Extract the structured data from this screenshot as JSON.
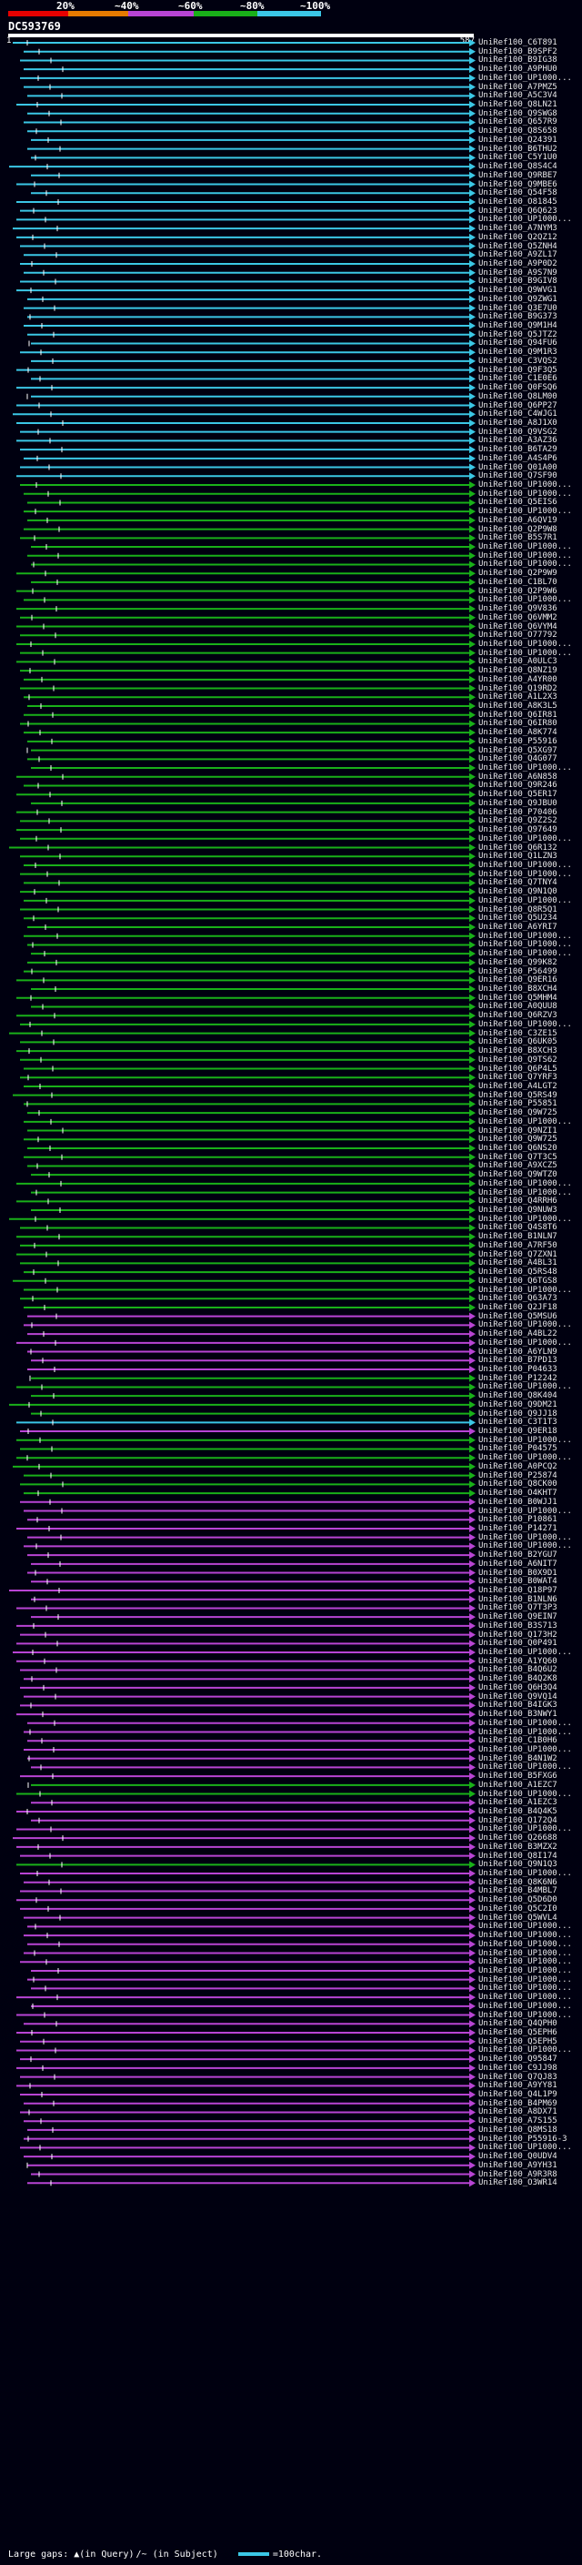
{
  "legend": {
    "labels": [
      "20%",
      "~40%",
      "~60%",
      "~80%",
      "~100%"
    ],
    "colors": [
      "#e60000",
      "#e67a00",
      "#b844d4",
      "#19b019",
      "#3bc7e6"
    ]
  },
  "query": {
    "name": "DC593769",
    "start": "1",
    "end": "587"
  },
  "hits": [
    {
      "label": "UniRef100_C6T891",
      "c": 4
    },
    {
      "label": "UniRef100_B9SPF2",
      "c": 4
    },
    {
      "label": "UniRef100_B9IG38",
      "c": 4
    },
    {
      "label": "UniRef100_A9PHU0",
      "c": 4
    },
    {
      "label": "UniRef100_UP1000...",
      "c": 4
    },
    {
      "label": "UniRef100_A7PMZ5",
      "c": 4
    },
    {
      "label": "UniRef100_A5C3V4",
      "c": 4
    },
    {
      "label": "UniRef100_Q8LN21",
      "c": 4
    },
    {
      "label": "UniRef100_Q9SWG8",
      "c": 4
    },
    {
      "label": "UniRef100_Q657R9",
      "c": 4
    },
    {
      "label": "UniRef100_Q8S658",
      "c": 4
    },
    {
      "label": "UniRef100_Q24391",
      "c": 4
    },
    {
      "label": "UniRef100_B6THU2",
      "c": 4
    },
    {
      "label": "UniRef100_C5Y1U0",
      "c": 4
    },
    {
      "label": "UniRef100_Q8S4C4",
      "c": 4
    },
    {
      "label": "UniRef100_Q9RBE7",
      "c": 4
    },
    {
      "label": "UniRef100_Q9MBE6",
      "c": 4
    },
    {
      "label": "UniRef100_Q54F58",
      "c": 4
    },
    {
      "label": "UniRef100_O81845",
      "c": 4
    },
    {
      "label": "UniRef100_Q6Q623",
      "c": 4
    },
    {
      "label": "UniRef100_UP1000...",
      "c": 4
    },
    {
      "label": "UniRef100_A7NYM3",
      "c": 4
    },
    {
      "label": "UniRef100_Q2QZ12",
      "c": 4
    },
    {
      "label": "UniRef100_Q5ZNH4",
      "c": 4
    },
    {
      "label": "UniRef100_A9ZL17",
      "c": 4
    },
    {
      "label": "UniRef100_A9P0D2",
      "c": 4
    },
    {
      "label": "UniRef100_A9S7N9",
      "c": 4
    },
    {
      "label": "UniRef100_B9GIV8",
      "c": 4
    },
    {
      "label": "UniRef100_Q9WVG1",
      "c": 4
    },
    {
      "label": "UniRef100_Q9ZWG1",
      "c": 4
    },
    {
      "label": "UniRef100_Q3E7U0",
      "c": 4
    },
    {
      "label": "UniRef100_B9G373",
      "c": 4
    },
    {
      "label": "UniRef100_Q9M1H4",
      "c": 4
    },
    {
      "label": "UniRef100_Q5JTZ2",
      "c": 4
    },
    {
      "label": "UniRef100_Q94FU6",
      "c": 4
    },
    {
      "label": "UniRef100_Q9M1R3",
      "c": 4
    },
    {
      "label": "UniRef100_C3VQS2",
      "c": 4
    },
    {
      "label": "UniRef100_Q9F3Q5",
      "c": 4
    },
    {
      "label": "UniRef100_C1E0E6",
      "c": 4
    },
    {
      "label": "UniRef100_Q0FSQ6",
      "c": 4
    },
    {
      "label": "UniRef100_Q8LM00",
      "c": 4
    },
    {
      "label": "UniRef100_Q6PP27",
      "c": 4
    },
    {
      "label": "UniRef100_C4WJG1",
      "c": 4
    },
    {
      "label": "UniRef100_A8J1X0",
      "c": 4
    },
    {
      "label": "UniRef100_Q9VSG2",
      "c": 4
    },
    {
      "label": "UniRef100_A3AZ36",
      "c": 4
    },
    {
      "label": "UniRef100_B6TA29",
      "c": 4
    },
    {
      "label": "UniRef100_A4S4P6",
      "c": 4
    },
    {
      "label": "UniRef100_Q01A00",
      "c": 4
    },
    {
      "label": "UniRef100_Q7SF90",
      "c": 4
    },
    {
      "label": "UniRef100_UP1000...",
      "c": 3
    },
    {
      "label": "UniRef100_UP1000...",
      "c": 3
    },
    {
      "label": "UniRef100_Q5EIS6",
      "c": 3
    },
    {
      "label": "UniRef100_UP1000...",
      "c": 3
    },
    {
      "label": "UniRef100_A6QV19",
      "c": 3
    },
    {
      "label": "UniRef100_Q2P9W8",
      "c": 3
    },
    {
      "label": "UniRef100_B5S7R1",
      "c": 3
    },
    {
      "label": "UniRef100_UP1000...",
      "c": 3
    },
    {
      "label": "UniRef100_UP1000...",
      "c": 3
    },
    {
      "label": "UniRef100_UP1000...",
      "c": 3
    },
    {
      "label": "UniRef100_Q2P9W9",
      "c": 3
    },
    {
      "label": "UniRef100_C1BL70",
      "c": 3
    },
    {
      "label": "UniRef100_Q2P9W6",
      "c": 3
    },
    {
      "label": "UniRef100_UP1000...",
      "c": 3
    },
    {
      "label": "UniRef100_Q9V836",
      "c": 3
    },
    {
      "label": "UniRef100_Q6VMM2",
      "c": 3
    },
    {
      "label": "UniRef100_Q6VYM4",
      "c": 3
    },
    {
      "label": "UniRef100_O77792",
      "c": 3
    },
    {
      "label": "UniRef100_UP1000...",
      "c": 3
    },
    {
      "label": "UniRef100_UP1000...",
      "c": 3
    },
    {
      "label": "UniRef100_A0ULC3",
      "c": 3
    },
    {
      "label": "UniRef100_Q8NZ19",
      "c": 3
    },
    {
      "label": "UniRef100_A4YR00",
      "c": 3
    },
    {
      "label": "UniRef100_Q19RD2",
      "c": 3
    },
    {
      "label": "UniRef100_A1L2X3",
      "c": 3
    },
    {
      "label": "UniRef100_A8K3L5",
      "c": 3
    },
    {
      "label": "UniRef100_Q6IR81",
      "c": 3
    },
    {
      "label": "UniRef100_Q6IR80",
      "c": 3
    },
    {
      "label": "UniRef100_A8K774",
      "c": 3
    },
    {
      "label": "UniRef100_P55916",
      "c": 3
    },
    {
      "label": "UniRef100_Q5XG97",
      "c": 3
    },
    {
      "label": "UniRef100_Q4G077",
      "c": 3
    },
    {
      "label": "UniRef100_UP1000...",
      "c": 3
    },
    {
      "label": "UniRef100_A6N858",
      "c": 3
    },
    {
      "label": "UniRef100_Q9R246",
      "c": 3
    },
    {
      "label": "UniRef100_Q5ER17",
      "c": 3
    },
    {
      "label": "UniRef100_Q9JBU0",
      "c": 3
    },
    {
      "label": "UniRef100_P70406",
      "c": 3
    },
    {
      "label": "UniRef100_Q9Z2S2",
      "c": 3
    },
    {
      "label": "UniRef100_Q97649",
      "c": 3
    },
    {
      "label": "UniRef100_UP1000...",
      "c": 3
    },
    {
      "label": "UniRef100_Q6R132",
      "c": 3
    },
    {
      "label": "UniRef100_Q1LZN3",
      "c": 3
    },
    {
      "label": "UniRef100_UP1000...",
      "c": 3
    },
    {
      "label": "UniRef100_UP1000...",
      "c": 3
    },
    {
      "label": "UniRef100_Q7TNY4",
      "c": 3
    },
    {
      "label": "UniRef100_Q9N1Q0",
      "c": 3
    },
    {
      "label": "UniRef100_UP1000...",
      "c": 3
    },
    {
      "label": "UniRef100_Q8R5Q1",
      "c": 3
    },
    {
      "label": "UniRef100_Q5U234",
      "c": 3
    },
    {
      "label": "UniRef100_A6YRI7",
      "c": 3
    },
    {
      "label": "UniRef100_UP1000...",
      "c": 3
    },
    {
      "label": "UniRef100_UP1000...",
      "c": 3
    },
    {
      "label": "UniRef100_UP1000...",
      "c": 3
    },
    {
      "label": "UniRef100_Q99K82",
      "c": 3
    },
    {
      "label": "UniRef100_P56499",
      "c": 3
    },
    {
      "label": "UniRef100_Q9ER16",
      "c": 3
    },
    {
      "label": "UniRef100_B8XCH4",
      "c": 3
    },
    {
      "label": "UniRef100_Q5MHM4",
      "c": 3
    },
    {
      "label": "UniRef100_A0QUU8",
      "c": 3
    },
    {
      "label": "UniRef100_Q6RZV3",
      "c": 3
    },
    {
      "label": "UniRef100_UP1000...",
      "c": 3
    },
    {
      "label": "UniRef100_C3ZE15",
      "c": 3
    },
    {
      "label": "UniRef100_Q6UK05",
      "c": 3
    },
    {
      "label": "UniRef100_B8XCH3",
      "c": 3
    },
    {
      "label": "UniRef100_Q9TS62",
      "c": 3
    },
    {
      "label": "UniRef100_Q6P4L5",
      "c": 3
    },
    {
      "label": "UniRef100_Q7YRF3",
      "c": 3
    },
    {
      "label": "UniRef100_A4LGT2",
      "c": 3
    },
    {
      "label": "UniRef100_Q5RS49",
      "c": 3
    },
    {
      "label": "UniRef100_P55851",
      "c": 3
    },
    {
      "label": "UniRef100_Q9W725",
      "c": 3
    },
    {
      "label": "UniRef100_UP1000...",
      "c": 3
    },
    {
      "label": "UniRef100_Q9NZI1",
      "c": 3
    },
    {
      "label": "UniRef100_Q9W725",
      "c": 3
    },
    {
      "label": "UniRef100_Q6NS20",
      "c": 3
    },
    {
      "label": "UniRef100_Q7T3C5",
      "c": 3
    },
    {
      "label": "UniRef100_A9XCZ5",
      "c": 3
    },
    {
      "label": "UniRef100_Q9WTZ0",
      "c": 3
    },
    {
      "label": "UniRef100_UP1000...",
      "c": 3
    },
    {
      "label": "UniRef100_UP1000...",
      "c": 3
    },
    {
      "label": "UniRef100_Q4RRH6",
      "c": 3
    },
    {
      "label": "UniRef100_Q9NUW3",
      "c": 3
    },
    {
      "label": "UniRef100_UP1000...",
      "c": 3
    },
    {
      "label": "UniRef100_Q4S8T6",
      "c": 3
    },
    {
      "label": "UniRef100_B1NLN7",
      "c": 3
    },
    {
      "label": "UniRef100_A7RF50",
      "c": 3
    },
    {
      "label": "UniRef100_Q7ZXN1",
      "c": 3
    },
    {
      "label": "UniRef100_A4BL31",
      "c": 3
    },
    {
      "label": "UniRef100_Q5RS48",
      "c": 3
    },
    {
      "label": "UniRef100_Q6TGS8",
      "c": 3
    },
    {
      "label": "UniRef100_UP1000...",
      "c": 3
    },
    {
      "label": "UniRef100_Q63A73",
      "c": 3
    },
    {
      "label": "UniRef100_Q2JF18",
      "c": 3
    },
    {
      "label": "UniRef100_Q5MSU6",
      "c": 2
    },
    {
      "label": "UniRef100_UP1000...",
      "c": 2
    },
    {
      "label": "UniRef100_A4BL22",
      "c": 2
    },
    {
      "label": "UniRef100_UP1000...",
      "c": 2
    },
    {
      "label": "UniRef100_A6YLN9",
      "c": 2
    },
    {
      "label": "UniRef100_B7PD13",
      "c": 2
    },
    {
      "label": "UniRef100_P04633",
      "c": 2
    },
    {
      "label": "UniRef100_P12242",
      "c": 3
    },
    {
      "label": "UniRef100_UP1000...",
      "c": 3
    },
    {
      "label": "UniRef100_Q8K404",
      "c": 3
    },
    {
      "label": "UniRef100_Q9DM21",
      "c": 3
    },
    {
      "label": "UniRef100_Q9JJ18",
      "c": 3
    },
    {
      "label": "UniRef100_C3T1T3",
      "c": 4
    },
    {
      "label": "UniRef100_Q9ER18",
      "c": 2
    },
    {
      "label": "UniRef100_UP1000...",
      "c": 3
    },
    {
      "label": "UniRef100_P04575",
      "c": 3
    },
    {
      "label": "UniRef100_UP1000...",
      "c": 3
    },
    {
      "label": "UniRef100_A0PCQ2",
      "c": 3
    },
    {
      "label": "UniRef100_P25874",
      "c": 3
    },
    {
      "label": "UniRef100_Q8CK00",
      "c": 3
    },
    {
      "label": "UniRef100_O4KHT7",
      "c": 3
    },
    {
      "label": "UniRef100_B0WJJ1",
      "c": 2
    },
    {
      "label": "UniRef100_UP1000...",
      "c": 2
    },
    {
      "label": "UniRef100_P10861",
      "c": 2
    },
    {
      "label": "UniRef100_P14271",
      "c": 2
    },
    {
      "label": "UniRef100_UP1000...",
      "c": 2
    },
    {
      "label": "UniRef100_UP1000...",
      "c": 2
    },
    {
      "label": "UniRef100_B2YGU7",
      "c": 2
    },
    {
      "label": "UniRef100_A6NIT7",
      "c": 2
    },
    {
      "label": "UniRef100_B0X9D1",
      "c": 2
    },
    {
      "label": "UniRef100_B0WAT4",
      "c": 2
    },
    {
      "label": "UniRef100_Q18P97",
      "c": 2
    },
    {
      "label": "UniRef100_B1NLN6",
      "c": 2
    },
    {
      "label": "UniRef100_Q7T3P3",
      "c": 2
    },
    {
      "label": "UniRef100_Q9EIN7",
      "c": 2
    },
    {
      "label": "UniRef100_B3S713",
      "c": 2
    },
    {
      "label": "UniRef100_Q173H2",
      "c": 2
    },
    {
      "label": "UniRef100_Q0P491",
      "c": 2
    },
    {
      "label": "UniRef100_UP1000...",
      "c": 2
    },
    {
      "label": "UniRef100_A1YQ60",
      "c": 2
    },
    {
      "label": "UniRef100_B4Q6U2",
      "c": 2
    },
    {
      "label": "UniRef100_B4Q2K8",
      "c": 2
    },
    {
      "label": "UniRef100_Q6H3Q4",
      "c": 2
    },
    {
      "label": "UniRef100_Q9VQ14",
      "c": 2
    },
    {
      "label": "UniRef100_B4IGK3",
      "c": 2
    },
    {
      "label": "UniRef100_B3NWY1",
      "c": 2
    },
    {
      "label": "UniRef100_UP1000...",
      "c": 2
    },
    {
      "label": "UniRef100_UP1000...",
      "c": 2
    },
    {
      "label": "UniRef100_C1B0H6",
      "c": 2
    },
    {
      "label": "UniRef100_UP1000...",
      "c": 2
    },
    {
      "label": "UniRef100_B4N1W2",
      "c": 2
    },
    {
      "label": "UniRef100_UP1000...",
      "c": 2
    },
    {
      "label": "UniRef100_B5FXG6",
      "c": 2
    },
    {
      "label": "UniRef100_A1EZC7",
      "c": 3
    },
    {
      "label": "UniRef100_UP1000...",
      "c": 3
    },
    {
      "label": "UniRef100_A1EZC3",
      "c": 2
    },
    {
      "label": "UniRef100_B4Q4K5",
      "c": 2
    },
    {
      "label": "UniRef100_Q172Q4",
      "c": 2
    },
    {
      "label": "UniRef100_UP1000...",
      "c": 2
    },
    {
      "label": "UniRef100_Q26688",
      "c": 2
    },
    {
      "label": "UniRef100_B3MZX2",
      "c": 2
    },
    {
      "label": "UniRef100_Q8I174",
      "c": 2
    },
    {
      "label": "UniRef100_Q9N1Q3",
      "c": 3
    },
    {
      "label": "UniRef100_UP1000...",
      "c": 2
    },
    {
      "label": "UniRef100_Q8K6N6",
      "c": 2
    },
    {
      "label": "UniRef100_B4MBL7",
      "c": 2
    },
    {
      "label": "UniRef100_Q5D6D0",
      "c": 2
    },
    {
      "label": "UniRef100_Q5C2I0",
      "c": 2
    },
    {
      "label": "UniRef100_Q5WVL4",
      "c": 2
    },
    {
      "label": "UniRef100_UP1000...",
      "c": 2
    },
    {
      "label": "UniRef100_UP1000...",
      "c": 2
    },
    {
      "label": "UniRef100_UP1000...",
      "c": 2
    },
    {
      "label": "UniRef100_UP1000...",
      "c": 2
    },
    {
      "label": "UniRef100_UP1000...",
      "c": 2
    },
    {
      "label": "UniRef100_UP1000...",
      "c": 2
    },
    {
      "label": "UniRef100_UP1000...",
      "c": 2
    },
    {
      "label": "UniRef100_UP1000...",
      "c": 2
    },
    {
      "label": "UniRef100_UP1000...",
      "c": 2
    },
    {
      "label": "UniRef100_UP1000...",
      "c": 2
    },
    {
      "label": "UniRef100_UP1000...",
      "c": 2
    },
    {
      "label": "UniRef100_Q4QPH0",
      "c": 2
    },
    {
      "label": "UniRef100_Q5EPH6",
      "c": 2
    },
    {
      "label": "UniRef100_Q5EPH5",
      "c": 2
    },
    {
      "label": "UniRef100_UP1000...",
      "c": 2
    },
    {
      "label": "UniRef100_Q95847",
      "c": 2
    },
    {
      "label": "UniRef100_C9JJ98",
      "c": 2
    },
    {
      "label": "UniRef100_Q7QJ83",
      "c": 2
    },
    {
      "label": "UniRef100_A9YY81",
      "c": 2
    },
    {
      "label": "UniRef100_Q4L1P9",
      "c": 2
    },
    {
      "label": "UniRef100_B4PM69",
      "c": 2
    },
    {
      "label": "UniRef100_A8DX71",
      "c": 2
    },
    {
      "label": "UniRef100_A7S155",
      "c": 2
    },
    {
      "label": "UniRef100_Q8MS18",
      "c": 2
    },
    {
      "label": "UniRef100_P55916-3",
      "c": 2
    },
    {
      "label": "UniRef100_UP1000...",
      "c": 2
    },
    {
      "label": "UniRef100_Q0UDV4",
      "c": 2
    },
    {
      "label": "UniRef100_A9YH31",
      "c": 2
    },
    {
      "label": "UniRef100_A9R3R8",
      "c": 2
    },
    {
      "label": "UniRef100_O3WR14",
      "c": 2
    }
  ],
  "footer": {
    "large_gaps": "Large gaps:",
    "in_query": "(in Query)",
    "in_subject": "/~ (in Subject)",
    "scale": "=100char."
  }
}
